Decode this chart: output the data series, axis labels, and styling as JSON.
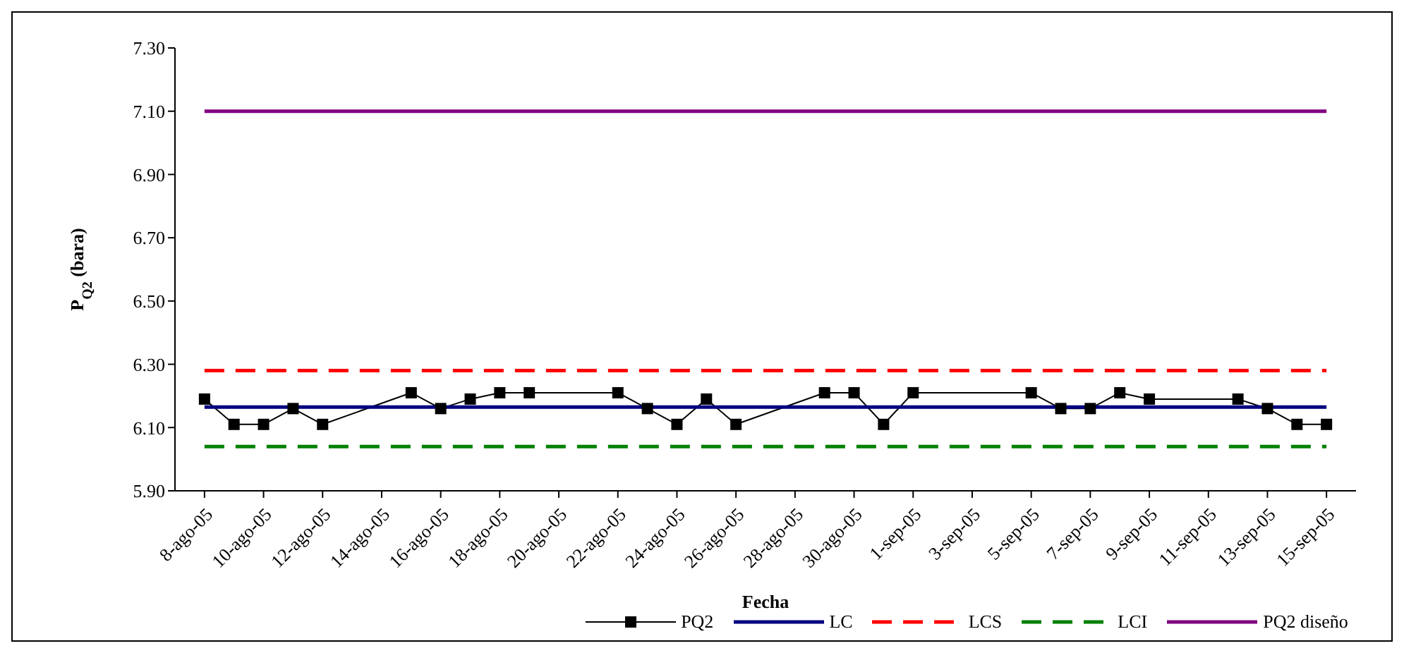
{
  "chart_data": {
    "type": "line",
    "xlabel": "Fecha",
    "ylabel": "P$_{Q2}$ (bara)",
    "x": [
      "--08-08",
      "--08-09",
      "--08-10",
      "--08-11",
      "--08-12",
      "--08-15",
      "--08-16",
      "--08-17",
      "--08-18",
      "--08-19",
      "--08-22",
      "--08-23",
      "--08-24",
      "--08-25",
      "--08-26",
      "--08-29",
      "--08-30",
      "--08-31",
      "--09-01",
      "--09-05",
      "--09-06",
      "--09-07",
      "--09-08",
      "--09-09",
      "--09-12",
      "--09-13",
      "--09-14",
      "--09-15"
    ],
    "series": [
      {
        "name": "PQ2",
        "color": "#000000",
        "marker": "square",
        "values": [
          6.19,
          6.11,
          6.11,
          6.16,
          6.11,
          6.21,
          6.16,
          6.19,
          6.21,
          6.21,
          6.21,
          6.16,
          6.11,
          6.19,
          6.11,
          6.21,
          6.21,
          6.11,
          6.21,
          6.21,
          6.16,
          6.16,
          6.21,
          6.19,
          6.19,
          6.16,
          6.11,
          6.11
        ]
      },
      {
        "name": "LC",
        "color": "#000080",
        "marker": "none",
        "x": [
          "--08-08",
          "--09-15"
        ],
        "values": [
          6.165,
          6.165
        ]
      },
      {
        "name": "LCS",
        "color": "#ff0000",
        "marker": "none",
        "line_style": "dashed",
        "x": [
          "--08-08",
          "--09-15"
        ],
        "values": [
          6.28,
          6.28
        ]
      },
      {
        "name": "LCI",
        "color": "#008000",
        "marker": "none",
        "line_style": "dashed",
        "x": [
          "--08-08",
          "--09-15"
        ],
        "values": [
          6.04,
          6.04
        ]
      },
      {
        "name": "PQ2 diseño",
        "color": "#800080",
        "marker": "none",
        "x": [
          "--08-08",
          "--09-15"
        ],
        "values": [
          7.1,
          7.1
        ]
      }
    ],
    "xlim": [
      "--08-07",
      "--09-16"
    ],
    "xticks": [
      {
        "value": "--08-08",
        "label": "8-ago-05"
      },
      {
        "value": "--08-10",
        "label": "10-ago-05"
      },
      {
        "value": "--08-12",
        "label": "12-ago-05"
      },
      {
        "value": "--08-14",
        "label": "14-ago-05"
      },
      {
        "value": "--08-16",
        "label": "16-ago-05"
      },
      {
        "value": "--08-18",
        "label": "18-ago-05"
      },
      {
        "value": "--08-20",
        "label": "20-ago-05"
      },
      {
        "value": "--08-22",
        "label": "22-ago-05"
      },
      {
        "value": "--08-24",
        "label": "24-ago-05"
      },
      {
        "value": "--08-26",
        "label": "26-ago-05"
      },
      {
        "value": "--08-28",
        "label": "28-ago-05"
      },
      {
        "value": "--08-30",
        "label": "30-ago-05"
      },
      {
        "value": "--09-01",
        "label": "1-sep-05"
      },
      {
        "value": "--09-03",
        "label": "3-sep-05"
      },
      {
        "value": "--09-05",
        "label": "5-sep-05"
      },
      {
        "value": "--09-07",
        "label": "7-sep-05"
      },
      {
        "value": "--09-09",
        "label": "9-sep-05"
      },
      {
        "value": "--09-11",
        "label": "11-sep-05"
      },
      {
        "value": "--09-13",
        "label": "13-sep-05"
      },
      {
        "value": "--09-15",
        "label": "15-sep-05"
      }
    ],
    "ylim": [
      5.9,
      7.3
    ],
    "yticks": [
      {
        "value": 5.9,
        "label": "5.90"
      },
      {
        "value": 6.1,
        "label": "6.10"
      },
      {
        "value": 6.3,
        "label": "6.30"
      },
      {
        "value": 6.5,
        "label": "6.50"
      },
      {
        "value": 6.7,
        "label": "6.70"
      },
      {
        "value": 6.9,
        "label": "6.90"
      },
      {
        "value": 7.1,
        "label": "7.10"
      },
      {
        "value": 7.3,
        "label": "7.30"
      }
    ],
    "legend": "bottom"
  }
}
